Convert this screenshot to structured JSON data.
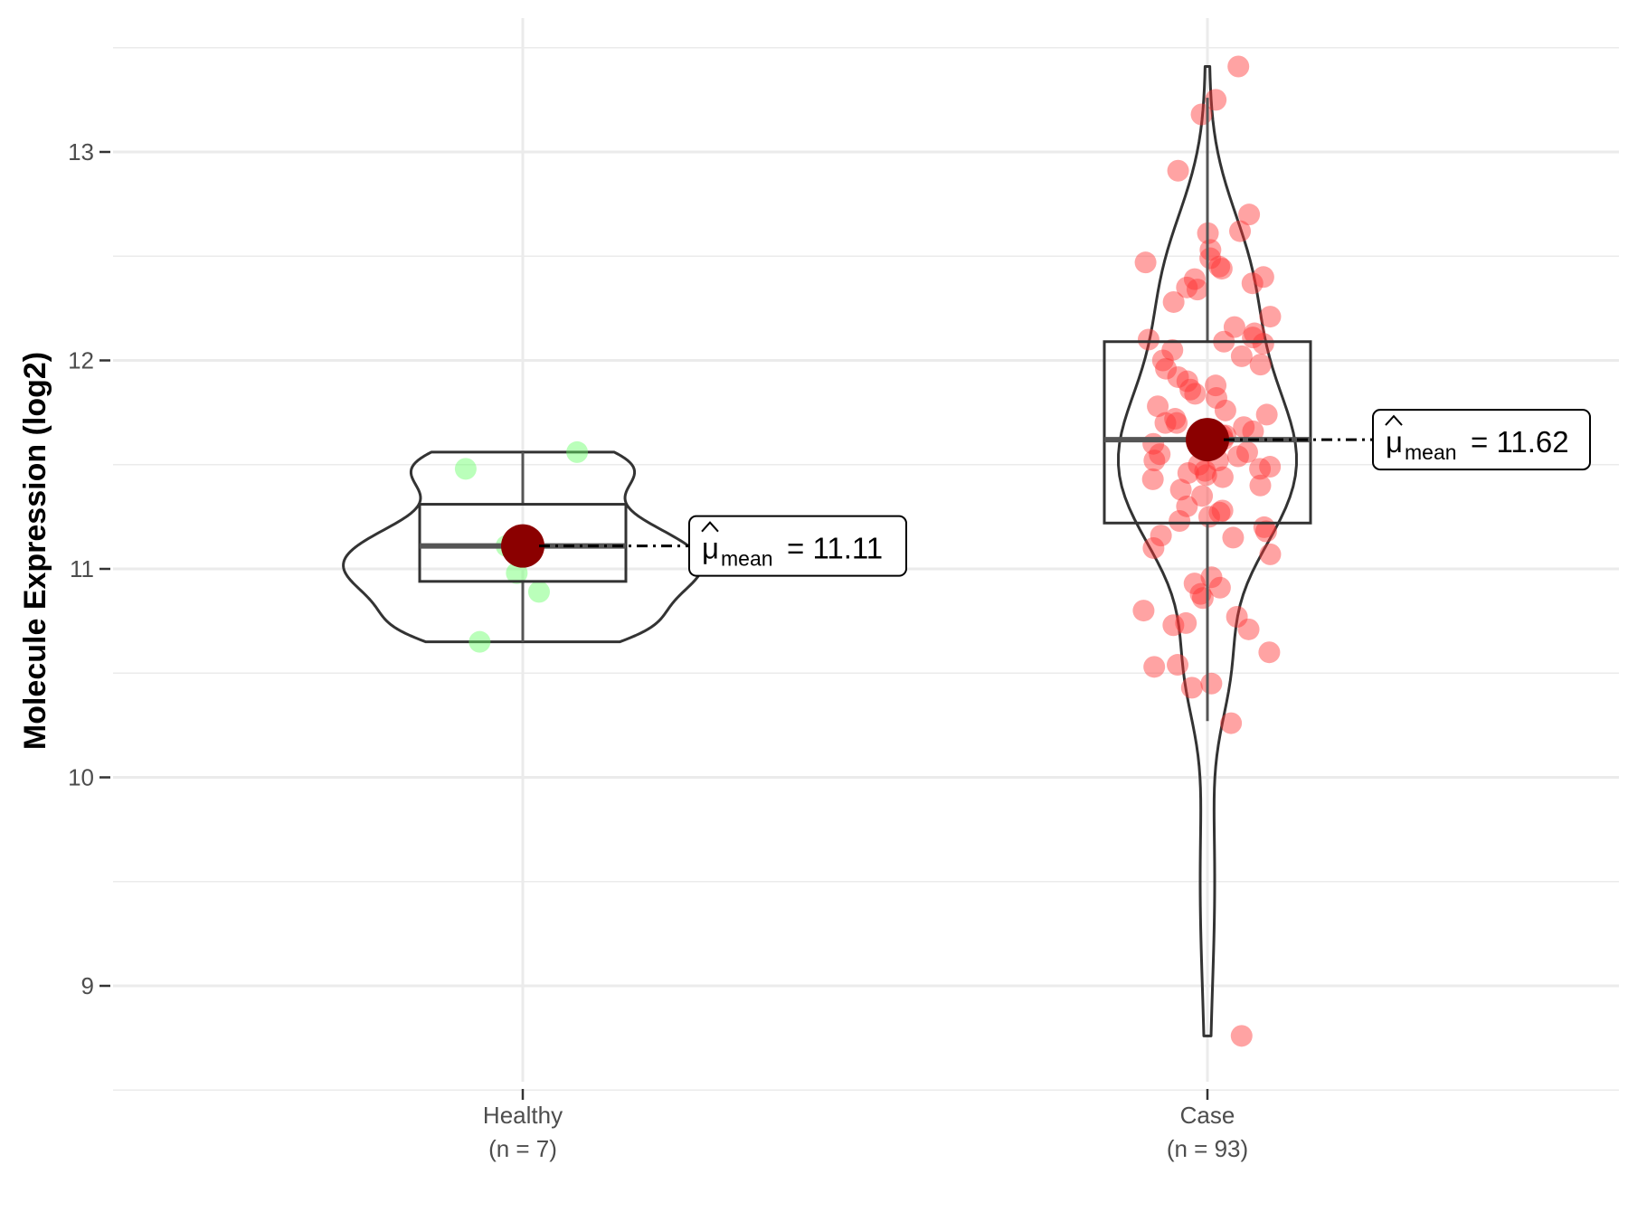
{
  "chart_data": {
    "type": "violin",
    "title": "",
    "xlabel": "",
    "ylabel": "Molecule Expression (log2)",
    "ylim": [
      8.5,
      13.5
    ],
    "yticks": [
      9,
      10,
      11,
      12,
      13
    ],
    "grid": true,
    "legend": "none",
    "groups": [
      {
        "name": "Healthy",
        "n_label": "(n = 7)",
        "color": "#66ff66",
        "mean": 11.11,
        "mean_label": "11.11",
        "box": {
          "q1": 10.94,
          "median": 11.11,
          "q3": 11.31,
          "lower": 10.65,
          "upper": 11.56
        },
        "violin": {
          "min": 10.65,
          "max": 11.56
        },
        "points": [
          11.56,
          11.48,
          11.13,
          11.11,
          10.98,
          10.89,
          10.65
        ]
      },
      {
        "name": "Case",
        "n_label": "(n = 93)",
        "color": "#ff3333",
        "mean": 11.62,
        "mean_label": "11.62",
        "box": {
          "q1": 11.22,
          "median": 11.62,
          "q3": 12.09,
          "lower": 10.27,
          "upper": 13.26
        },
        "violin": {
          "min": 8.76,
          "max": 13.41
        },
        "points": [
          13.41,
          13.25,
          13.18,
          12.91,
          12.7,
          12.62,
          12.61,
          12.53,
          12.49,
          12.47,
          12.45,
          12.44,
          12.39,
          12.37,
          12.35,
          12.34,
          12.28,
          12.21,
          12.16,
          12.13,
          12.11,
          12.1,
          12.09,
          12.08,
          12.05,
          12.02,
          12.0,
          11.98,
          11.96,
          11.9,
          11.88,
          11.86,
          11.84,
          11.82,
          11.78,
          11.76,
          11.74,
          11.72,
          11.7,
          11.68,
          11.66,
          11.64,
          11.6,
          11.58,
          11.56,
          11.54,
          11.52,
          11.5,
          11.49,
          11.48,
          11.47,
          11.46,
          11.45,
          11.43,
          11.4,
          11.38,
          11.3,
          11.28,
          11.27,
          11.25,
          11.23,
          11.2,
          11.18,
          11.16,
          11.15,
          11.1,
          11.07,
          10.96,
          10.93,
          10.91,
          10.88,
          10.86,
          10.8,
          10.77,
          10.74,
          10.73,
          10.71,
          10.6,
          10.54,
          10.53,
          10.45,
          10.43,
          10.26,
          8.76,
          11.62,
          11.64,
          11.55,
          11.35,
          11.52,
          11.7,
          11.92,
          12.4,
          11.44
        ]
      }
    ]
  }
}
